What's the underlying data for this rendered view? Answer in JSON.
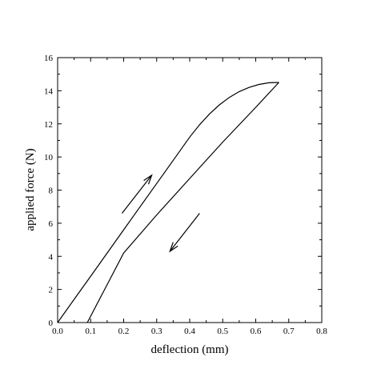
{
  "chart_data": {
    "type": "line",
    "title": "",
    "xlabel": "deflection (mm)",
    "ylabel": "applied force (N)",
    "xlim": [
      0.0,
      0.8
    ],
    "ylim": [
      0,
      16
    ],
    "x_ticks": [
      0.0,
      0.1,
      0.2,
      0.3,
      0.4,
      0.5,
      0.6,
      0.7,
      0.8
    ],
    "x_tick_labels": [
      "0.0",
      "0.1",
      "0.2",
      "0.3",
      "0.4",
      "0.5",
      "0.6",
      "0.7",
      "0.8"
    ],
    "y_ticks": [
      0,
      2,
      4,
      6,
      8,
      10,
      12,
      14,
      16
    ],
    "y_tick_labels": [
      "0",
      "2",
      "4",
      "6",
      "8",
      "10",
      "12",
      "14",
      "16"
    ],
    "grid": false,
    "legend": "none",
    "series": [
      {
        "x": [
          0.0,
          0.05,
          0.1,
          0.15,
          0.2,
          0.25,
          0.3,
          0.35,
          0.4,
          0.43,
          0.46,
          0.49,
          0.52,
          0.55,
          0.58,
          0.61,
          0.64,
          0.67
        ],
        "y": [
          0.0,
          1.4,
          2.8,
          4.2,
          5.6,
          7.0,
          8.4,
          9.8,
          11.2,
          11.95,
          12.6,
          13.15,
          13.6,
          13.95,
          14.2,
          14.38,
          14.48,
          14.5
        ]
      },
      {
        "x": [
          0.67,
          0.6,
          0.5,
          0.4,
          0.3,
          0.2,
          0.09
        ],
        "y": [
          14.5,
          13.0,
          10.9,
          8.7,
          6.5,
          4.2,
          0.0
        ]
      }
    ],
    "annotations": [
      {
        "type": "arrow",
        "direction": "loading",
        "from": [
          0.195,
          6.6
        ],
        "to": [
          0.285,
          8.9
        ]
      },
      {
        "type": "arrow",
        "direction": "unloading",
        "from": [
          0.43,
          6.6
        ],
        "to": [
          0.34,
          4.3
        ]
      }
    ]
  }
}
